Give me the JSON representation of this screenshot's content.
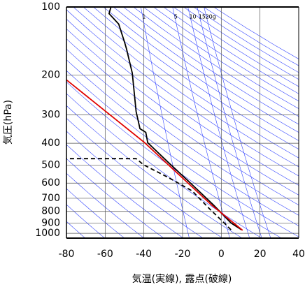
{
  "chart_data": {
    "type": "line",
    "x_label": "気温(実線), 露点(破線)",
    "y_label": "気圧(hPa)",
    "xlim": [
      -80,
      40
    ],
    "xticks": [
      -80,
      -60,
      -40,
      -20,
      0,
      20,
      40
    ],
    "ylim": [
      1050,
      100
    ],
    "log_y": true,
    "yticks": [
      100,
      200,
      300,
      400,
      500,
      600,
      700,
      800,
      900,
      1000
    ],
    "grid": true,
    "mixing_ratio_labels": [
      1,
      5,
      10,
      15,
      {
        "value": 20,
        "label": "20g"
      }
    ],
    "series": [
      {
        "color": "#000000",
        "style": "solid",
        "x": [
          10.5,
          5,
          -4,
          -17,
          -27.5,
          -38,
          -39,
          -42,
          -44,
          -46,
          -49,
          -50,
          -53,
          -58,
          -57
        ],
        "y": [
          965,
          900,
          750,
          588,
          485,
          398,
          358,
          345,
          290,
          196,
          153,
          143,
          119,
          107,
          100
        ]
      },
      {
        "color": "#000000",
        "style": "dashed",
        "x": [
          5,
          1.5,
          -6,
          -15,
          -27.5,
          -40,
          -44,
          -80
        ],
        "y": [
          965,
          900,
          780,
          650,
          566,
          499,
          468,
          468
        ]
      },
      {
        "color": "#e00000",
        "style": "solid",
        "x": [
          11,
          -5,
          -40,
          -80
        ],
        "y": [
          970,
          750,
          395,
          210
        ]
      }
    ]
  }
}
